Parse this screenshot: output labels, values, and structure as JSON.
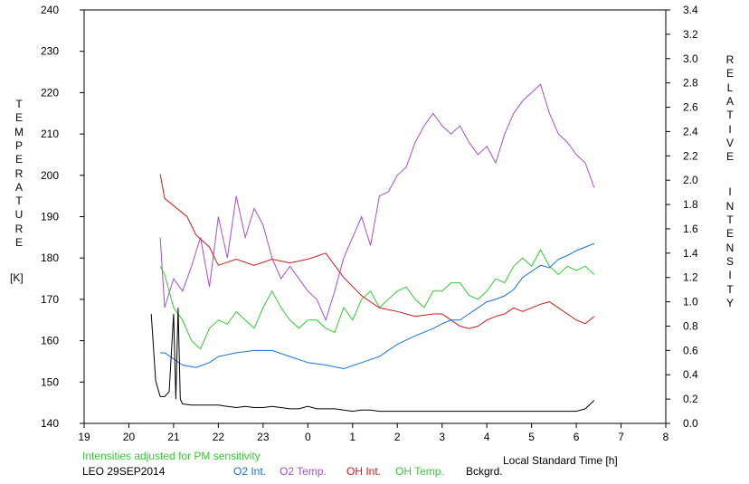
{
  "chart_data": {
    "type": "line",
    "xlabel": "Local Standard Time [h]",
    "ylabel_left": "TEMPERATURE",
    "ylabel_left_unit": "[K]",
    "ylabel_right": "RELATIVE INTENSITY",
    "x_ticks": [
      "19",
      "20",
      "21",
      "22",
      "23",
      "0",
      "1",
      "2",
      "3",
      "4",
      "5",
      "6",
      "7",
      "8"
    ],
    "y_left_ticks": [
      "140",
      "150",
      "160",
      "170",
      "180",
      "190",
      "200",
      "210",
      "220",
      "230",
      "240"
    ],
    "y_right_ticks": [
      "0.0",
      "0.2",
      "0.4",
      "0.6",
      "0.8",
      "1.0",
      "1.2",
      "1.4",
      "1.6",
      "1.8",
      "2.0",
      "2.2",
      "2.4",
      "2.6",
      "2.8",
      "3.0",
      "3.2",
      "3.4"
    ],
    "ylim_left": [
      140,
      240
    ],
    "ylim_right": [
      0.0,
      3.4
    ],
    "xlim_hours_after_19": [
      0,
      13
    ],
    "grid": false,
    "note": "Intensities adjusted for PM sensitivity",
    "station_date": "LEO 29SEP2014",
    "legend": [
      {
        "label": "O2 Int.",
        "color": "#1a6fd6"
      },
      {
        "label": "O2 Temp.",
        "color": "#a64fd6"
      },
      {
        "label": "OH Int.",
        "color": "#d11a1a"
      },
      {
        "label": "OH Temp.",
        "color": "#33cc33"
      },
      {
        "label": "Bckgrd.",
        "color": "#000000"
      }
    ],
    "note_color": "#33cc33",
    "series": [
      {
        "name": "O2 Temp.",
        "axis": "left",
        "color": "#a64fd6",
        "x": [
          1.7,
          1.8,
          2.0,
          2.2,
          2.4,
          2.6,
          2.8,
          3.0,
          3.2,
          3.4,
          3.6,
          3.8,
          4.0,
          4.2,
          4.4,
          4.6,
          4.8,
          5.0,
          5.2,
          5.4,
          5.6,
          5.8,
          6.0,
          6.2,
          6.4,
          6.6,
          6.8,
          7.0,
          7.2,
          7.4,
          7.6,
          7.8,
          8.0,
          8.2,
          8.4,
          8.6,
          8.8,
          9.0,
          9.2,
          9.4,
          9.6,
          9.8,
          10.0,
          10.2,
          10.4,
          10.6,
          10.8,
          11.0,
          11.2,
          11.4
        ],
        "y": [
          185,
          168,
          175,
          172,
          178,
          185,
          173,
          190,
          180,
          195,
          185,
          192,
          188,
          180,
          175,
          178,
          175,
          172,
          170,
          165,
          172,
          180,
          185,
          190,
          183,
          195,
          196,
          200,
          202,
          208,
          212,
          215,
          212,
          210,
          212,
          208,
          205,
          207,
          203,
          210,
          215,
          218,
          220,
          222,
          215,
          210,
          208,
          205,
          203,
          197
        ]
      },
      {
        "name": "OH Temp.",
        "axis": "left",
        "color": "#33cc33",
        "x": [
          1.7,
          1.8,
          2.0,
          2.2,
          2.4,
          2.6,
          2.8,
          3.0,
          3.2,
          3.4,
          3.6,
          3.8,
          4.0,
          4.2,
          4.4,
          4.6,
          4.8,
          5.0,
          5.2,
          5.4,
          5.6,
          5.8,
          6.0,
          6.2,
          6.4,
          6.6,
          6.8,
          7.0,
          7.2,
          7.4,
          7.6,
          7.8,
          8.0,
          8.2,
          8.4,
          8.6,
          8.8,
          9.0,
          9.2,
          9.4,
          9.6,
          9.8,
          10.0,
          10.2,
          10.4,
          10.6,
          10.8,
          11.0,
          11.2,
          11.4
        ],
        "y": [
          178,
          176,
          168,
          165,
          160,
          158,
          163,
          165,
          164,
          167,
          165,
          163,
          168,
          172,
          168,
          165,
          163,
          165,
          165,
          163,
          162,
          168,
          165,
          170,
          172,
          168,
          170,
          172,
          173,
          170,
          168,
          172,
          172,
          174,
          174,
          171,
          170,
          172,
          175,
          174,
          178,
          180,
          178,
          182,
          178,
          176,
          178,
          177,
          178,
          176
        ]
      },
      {
        "name": "OH Int.",
        "axis": "right",
        "color": "#d11a1a",
        "x": [
          1.7,
          1.8,
          2.3,
          2.5,
          2.8,
          3.0,
          3.4,
          3.8,
          4.2,
          4.6,
          5.0,
          5.4,
          5.8,
          6.2,
          6.6,
          7.0,
          7.4,
          7.8,
          8.0,
          8.2,
          8.4,
          8.6,
          8.8,
          9.0,
          9.2,
          9.4,
          9.6,
          9.8,
          10.0,
          10.2,
          10.4,
          10.6,
          10.8,
          11.0,
          11.2,
          11.4
        ],
        "y": [
          2.05,
          1.85,
          1.7,
          1.55,
          1.45,
          1.3,
          1.35,
          1.3,
          1.35,
          1.32,
          1.35,
          1.4,
          1.2,
          1.05,
          0.95,
          0.92,
          0.88,
          0.9,
          0.9,
          0.85,
          0.8,
          0.78,
          0.8,
          0.85,
          0.88,
          0.9,
          0.95,
          0.92,
          0.95,
          0.98,
          1.0,
          0.95,
          0.9,
          0.85,
          0.82,
          0.88
        ]
      },
      {
        "name": "O2 Int.",
        "axis": "right",
        "color": "#1a6fd6",
        "x": [
          1.7,
          1.8,
          2.2,
          2.5,
          2.8,
          3.0,
          3.4,
          3.8,
          4.2,
          4.6,
          5.0,
          5.4,
          5.8,
          6.2,
          6.6,
          7.0,
          7.4,
          7.8,
          8.0,
          8.2,
          8.4,
          8.6,
          8.8,
          9.0,
          9.2,
          9.4,
          9.6,
          9.8,
          10.0,
          10.2,
          10.4,
          10.6,
          10.8,
          11.0,
          11.2,
          11.4
        ],
        "y": [
          0.58,
          0.58,
          0.48,
          0.46,
          0.5,
          0.55,
          0.58,
          0.6,
          0.6,
          0.55,
          0.5,
          0.48,
          0.45,
          0.5,
          0.55,
          0.65,
          0.72,
          0.78,
          0.82,
          0.85,
          0.85,
          0.9,
          0.95,
          1.0,
          1.02,
          1.05,
          1.1,
          1.2,
          1.25,
          1.3,
          1.28,
          1.35,
          1.38,
          1.42,
          1.45,
          1.48
        ]
      },
      {
        "name": "Bckgrd.",
        "axis": "right",
        "color": "#000000",
        "x": [
          1.5,
          1.6,
          1.7,
          1.8,
          1.9,
          2.0,
          2.05,
          2.1,
          2.15,
          2.2,
          2.4,
          2.6,
          2.8,
          3.0,
          3.2,
          3.4,
          3.6,
          3.8,
          4.0,
          4.2,
          4.4,
          4.6,
          4.8,
          5.0,
          5.2,
          5.4,
          5.6,
          5.8,
          6.0,
          6.2,
          6.4,
          6.6,
          6.8,
          7.0,
          7.2,
          7.4,
          7.6,
          7.8,
          8.0,
          8.2,
          8.4,
          8.6,
          8.8,
          9.0,
          9.2,
          9.4,
          9.6,
          9.8,
          10.0,
          10.2,
          10.4,
          10.6,
          10.8,
          11.0,
          11.2,
          11.4
        ],
        "y": [
          0.9,
          0.35,
          0.22,
          0.22,
          0.26,
          0.9,
          0.2,
          0.95,
          0.2,
          0.16,
          0.15,
          0.15,
          0.15,
          0.15,
          0.14,
          0.13,
          0.14,
          0.13,
          0.13,
          0.14,
          0.13,
          0.12,
          0.12,
          0.14,
          0.12,
          0.12,
          0.12,
          0.11,
          0.1,
          0.11,
          0.11,
          0.1,
          0.1,
          0.1,
          0.1,
          0.1,
          0.1,
          0.1,
          0.1,
          0.1,
          0.1,
          0.1,
          0.1,
          0.1,
          0.1,
          0.1,
          0.1,
          0.1,
          0.1,
          0.1,
          0.1,
          0.1,
          0.1,
          0.1,
          0.12,
          0.19
        ]
      }
    ]
  }
}
